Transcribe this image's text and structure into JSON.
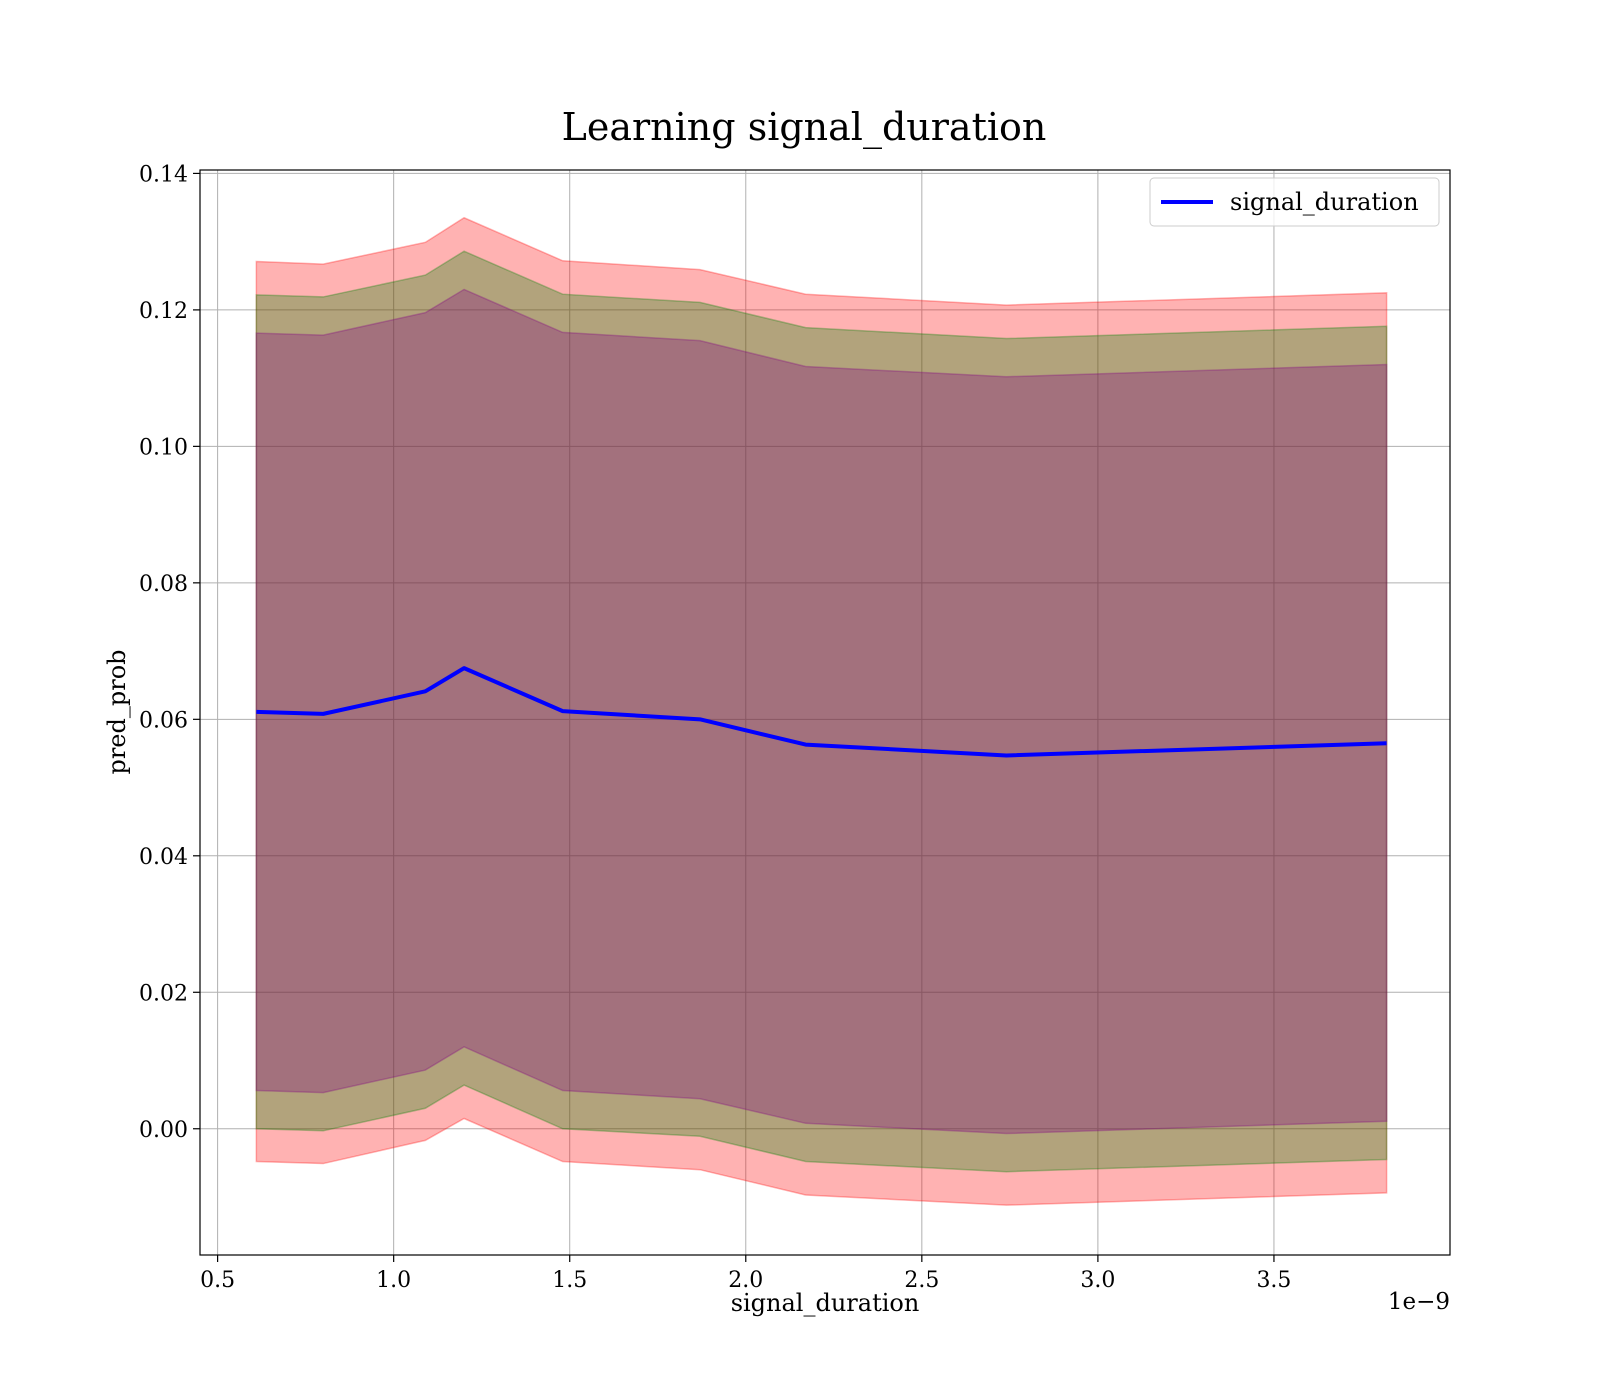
{
  "chart_data": {
    "type": "line",
    "title": "Learning signal_duration",
    "xlabel": "signal_duration",
    "ylabel": "pred_prob",
    "x_offset_label": "1e−9",
    "xlim": [
      0.45,
      4.0
    ],
    "ylim": [
      -0.0185,
      0.1405
    ],
    "xticks": [
      0.5,
      1.0,
      1.5,
      2.0,
      2.5,
      3.0,
      3.5
    ],
    "xtick_labels": [
      "0.5",
      "1.0",
      "1.5",
      "2.0",
      "2.5",
      "3.0",
      "3.5"
    ],
    "yticks": [
      0.0,
      0.02,
      0.04,
      0.06,
      0.08,
      0.1,
      0.12,
      0.14
    ],
    "ytick_labels": [
      "0.00",
      "0.02",
      "0.04",
      "0.06",
      "0.08",
      "0.10",
      "0.12",
      "0.14"
    ],
    "grid": true,
    "legend_position": "top-right",
    "x": [
      0.61,
      0.8,
      1.09,
      1.2,
      1.48,
      1.87,
      2.17,
      2.74,
      3.82
    ],
    "series": [
      {
        "name": "signal_duration",
        "color": "#0000ff",
        "values": [
          0.0611,
          0.0608,
          0.0641,
          0.0675,
          0.0612,
          0.06,
          0.0563,
          0.0547,
          0.0565
        ]
      }
    ],
    "bands": [
      {
        "color": "#ff0000",
        "opacity": 0.3,
        "lower": [
          -0.0048,
          -0.0051,
          -0.0017,
          0.0015,
          -0.0048,
          -0.006,
          -0.0097,
          -0.0112,
          -0.0094
        ],
        "upper": [
          0.1271,
          0.1267,
          0.1299,
          0.1335,
          0.1272,
          0.1259,
          0.1223,
          0.1207,
          0.1225
        ]
      },
      {
        "color": "#008000",
        "opacity": 0.3,
        "lower": [
          0.0,
          -0.0003,
          0.003,
          0.0064,
          0.0,
          -0.0011,
          -0.0048,
          -0.0063,
          -0.0045
        ],
        "upper": [
          0.1222,
          0.1219,
          0.1251,
          0.1286,
          0.1223,
          0.1211,
          0.1174,
          0.1158,
          0.1176
        ]
      },
      {
        "color": "#800080",
        "opacity": 0.3,
        "lower": [
          0.0056,
          0.0053,
          0.0086,
          0.012,
          0.0056,
          0.0044,
          0.0008,
          -0.0007,
          0.0011
        ],
        "upper": [
          0.1166,
          0.1163,
          0.1196,
          0.123,
          0.1167,
          0.1155,
          0.1117,
          0.1102,
          0.112
        ]
      }
    ]
  }
}
